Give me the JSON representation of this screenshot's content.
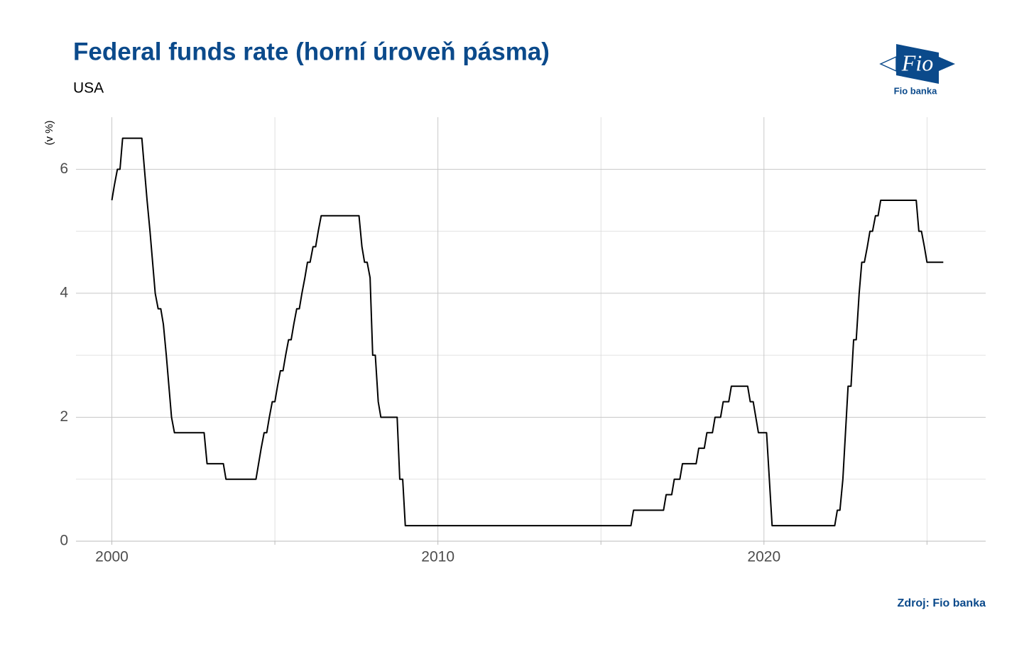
{
  "chart_data": {
    "type": "line",
    "title": "Federal funds rate (horní úroveň pásma)",
    "subtitle": "USA",
    "y_label": "(v %)",
    "source": "Zdroj: Fio banka",
    "color": "#000000",
    "x": [
      2000.0,
      2000.08,
      2000.17,
      2000.25,
      2000.33,
      2000.92,
      2001.0,
      2001.08,
      2001.17,
      2001.25,
      2001.33,
      2001.42,
      2001.5,
      2001.58,
      2001.67,
      2001.75,
      2001.83,
      2001.92,
      2002.83,
      2002.92,
      2003.42,
      2003.5,
      2004.42,
      2004.5,
      2004.58,
      2004.67,
      2004.75,
      2004.83,
      2004.92,
      2005.0,
      2005.08,
      2005.17,
      2005.25,
      2005.33,
      2005.42,
      2005.5,
      2005.58,
      2005.67,
      2005.75,
      2005.83,
      2005.92,
      2006.0,
      2006.08,
      2006.17,
      2006.25,
      2006.33,
      2006.42,
      2007.58,
      2007.67,
      2007.75,
      2007.83,
      2007.92,
      2008.0,
      2008.08,
      2008.17,
      2008.25,
      2008.75,
      2008.83,
      2008.92,
      2009.0,
      2015.92,
      2016.0,
      2016.92,
      2017.0,
      2017.17,
      2017.25,
      2017.42,
      2017.5,
      2017.92,
      2018.0,
      2018.17,
      2018.25,
      2018.42,
      2018.5,
      2018.67,
      2018.75,
      2018.92,
      2019.0,
      2019.5,
      2019.58,
      2019.67,
      2019.75,
      2019.83,
      2020.08,
      2020.25,
      2022.17,
      2022.25,
      2022.33,
      2022.42,
      2022.5,
      2022.58,
      2022.67,
      2022.75,
      2022.83,
      2022.92,
      2023.0,
      2023.08,
      2023.17,
      2023.25,
      2023.33,
      2023.42,
      2023.5,
      2023.58,
      2024.67,
      2024.75,
      2024.83,
      2024.92,
      2025.0,
      2025.5
    ],
    "values": [
      5.5,
      5.75,
      6.0,
      6.0,
      6.5,
      6.5,
      6.0,
      5.5,
      5.0,
      4.5,
      4.0,
      3.75,
      3.75,
      3.5,
      3.0,
      2.5,
      2.0,
      1.75,
      1.75,
      1.25,
      1.25,
      1.0,
      1.0,
      1.25,
      1.5,
      1.75,
      1.75,
      2.0,
      2.25,
      2.25,
      2.5,
      2.75,
      2.75,
      3.0,
      3.25,
      3.25,
      3.5,
      3.75,
      3.75,
      4.0,
      4.25,
      4.5,
      4.5,
      4.75,
      4.75,
      5.0,
      5.25,
      5.25,
      4.75,
      4.5,
      4.5,
      4.25,
      3.0,
      3.0,
      2.25,
      2.0,
      2.0,
      1.0,
      1.0,
      0.25,
      0.25,
      0.5,
      0.5,
      0.75,
      0.75,
      1.0,
      1.0,
      1.25,
      1.25,
      1.5,
      1.5,
      1.75,
      1.75,
      2.0,
      2.0,
      2.25,
      2.25,
      2.5,
      2.5,
      2.25,
      2.25,
      2.0,
      1.75,
      1.75,
      0.25,
      0.25,
      0.5,
      0.5,
      1.0,
      1.75,
      2.5,
      2.5,
      3.25,
      3.25,
      4.0,
      4.5,
      4.5,
      4.75,
      5.0,
      5.0,
      5.25,
      5.25,
      5.5,
      5.5,
      5.0,
      5.0,
      4.75,
      4.5,
      4.5
    ],
    "xlim": [
      1998.9,
      2026.8
    ],
    "xticks": [
      2000,
      2010,
      2020
    ],
    "xminor": [
      2005,
      2015,
      2025
    ],
    "ylim": [
      0,
      6.84
    ],
    "yticks": [
      0,
      2,
      4,
      6
    ],
    "yminor": [
      1,
      3,
      5
    ],
    "grid": true
  },
  "logo": {
    "mark": "Fio",
    "caption": "Fio banka"
  }
}
